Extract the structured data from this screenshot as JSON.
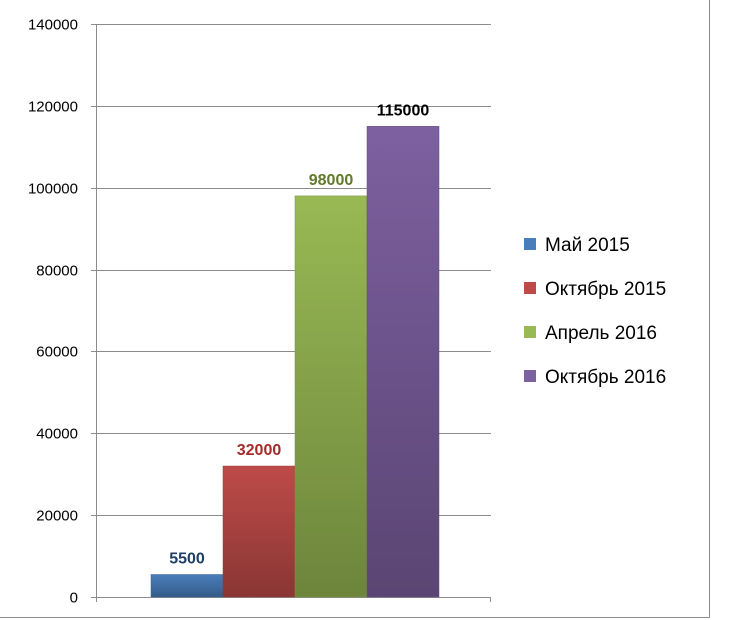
{
  "chart_data": {
    "type": "bar",
    "title": "",
    "xlabel": "",
    "ylabel": "",
    "ylim": [
      0,
      140000
    ],
    "yticks": [
      0,
      20000,
      40000,
      60000,
      80000,
      100000,
      120000,
      140000
    ],
    "grid": true,
    "legend_position": "right",
    "series": [
      {
        "name": "Май 2015",
        "value": 5500,
        "label": "5500",
        "color": "#4a7ebb",
        "label_color": "#1f3f66"
      },
      {
        "name": "Октябрь 2015",
        "value": 32000,
        "label": "32000",
        "color": "#be4b48",
        "label_color": "#a52a28"
      },
      {
        "name": "Апрель 2016",
        "value": 98000,
        "label": "98000",
        "color": "#98b954",
        "label_color": "#5f7a2a"
      },
      {
        "name": "Октябрь 2016",
        "value": 115000,
        "label": "115000",
        "color": "#7d60a0",
        "label_color": "#000000"
      }
    ]
  }
}
